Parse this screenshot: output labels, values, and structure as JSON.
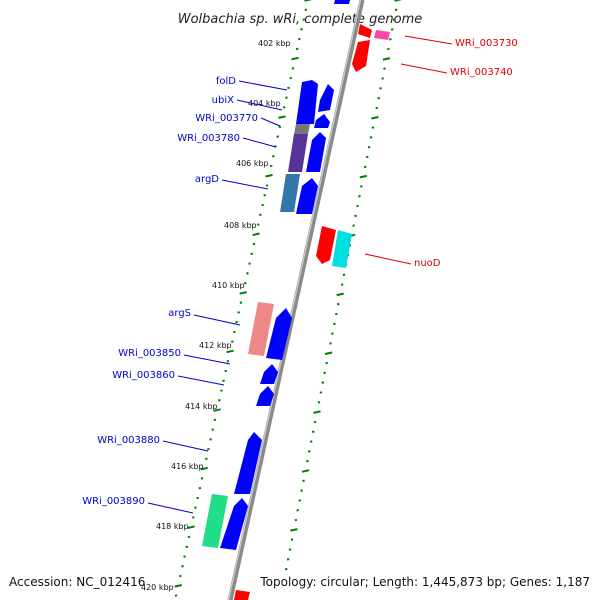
{
  "title": "Wolbachia sp. wRi, complete genome",
  "footer": {
    "accession": "Accession: NC_012416",
    "topology": "Topology: circular; Length: 1,445,873 bp; Genes: 1,187"
  },
  "ruler": {
    "labels": [
      "402 kbp",
      "404 kbp",
      "406 kbp",
      "408 kbp",
      "410 kbp",
      "412 kbp",
      "414 kbp",
      "416 kbp",
      "418 kbp",
      "420 kbp"
    ]
  },
  "genes_left": [
    {
      "label": "folD",
      "color": "#0000ff"
    },
    {
      "label": "ubiX",
      "color": "#0000ff"
    },
    {
      "label": "WRi_003770",
      "color": "#0000ff"
    },
    {
      "label": "WRi_003780",
      "color": "#0000ff"
    },
    {
      "label": "argD",
      "color": "#0000ff"
    },
    {
      "label": "argS",
      "color": "#0000ff"
    },
    {
      "label": "WRi_003850",
      "color": "#0000ff"
    },
    {
      "label": "WRi_003860",
      "color": "#0000ff"
    },
    {
      "label": "WRi_003880",
      "color": "#0000ff"
    },
    {
      "label": "WRi_003890",
      "color": "#0000ff"
    }
  ],
  "genes_right": [
    {
      "label": "WRi_003730",
      "color": "#ff0000"
    },
    {
      "label": "WRi_003740",
      "color": "#ff0000"
    },
    {
      "label": "nuoD",
      "color": "#ff0000"
    }
  ],
  "colors": {
    "backbone": "#8a8a8a",
    "dots": "#008000",
    "forward_gene": "#0000ff",
    "reverse_gene": "#ff0000",
    "left_label": "#0000cc",
    "right_label": "#dd0000",
    "teal_block": "#00e0e0",
    "green_block": "#22dd88",
    "pink_block": "#ee8888",
    "magenta_block": "#ff44aa",
    "purple_block": "#553399",
    "steel_block": "#3377aa",
    "grey_block": "#777777"
  }
}
